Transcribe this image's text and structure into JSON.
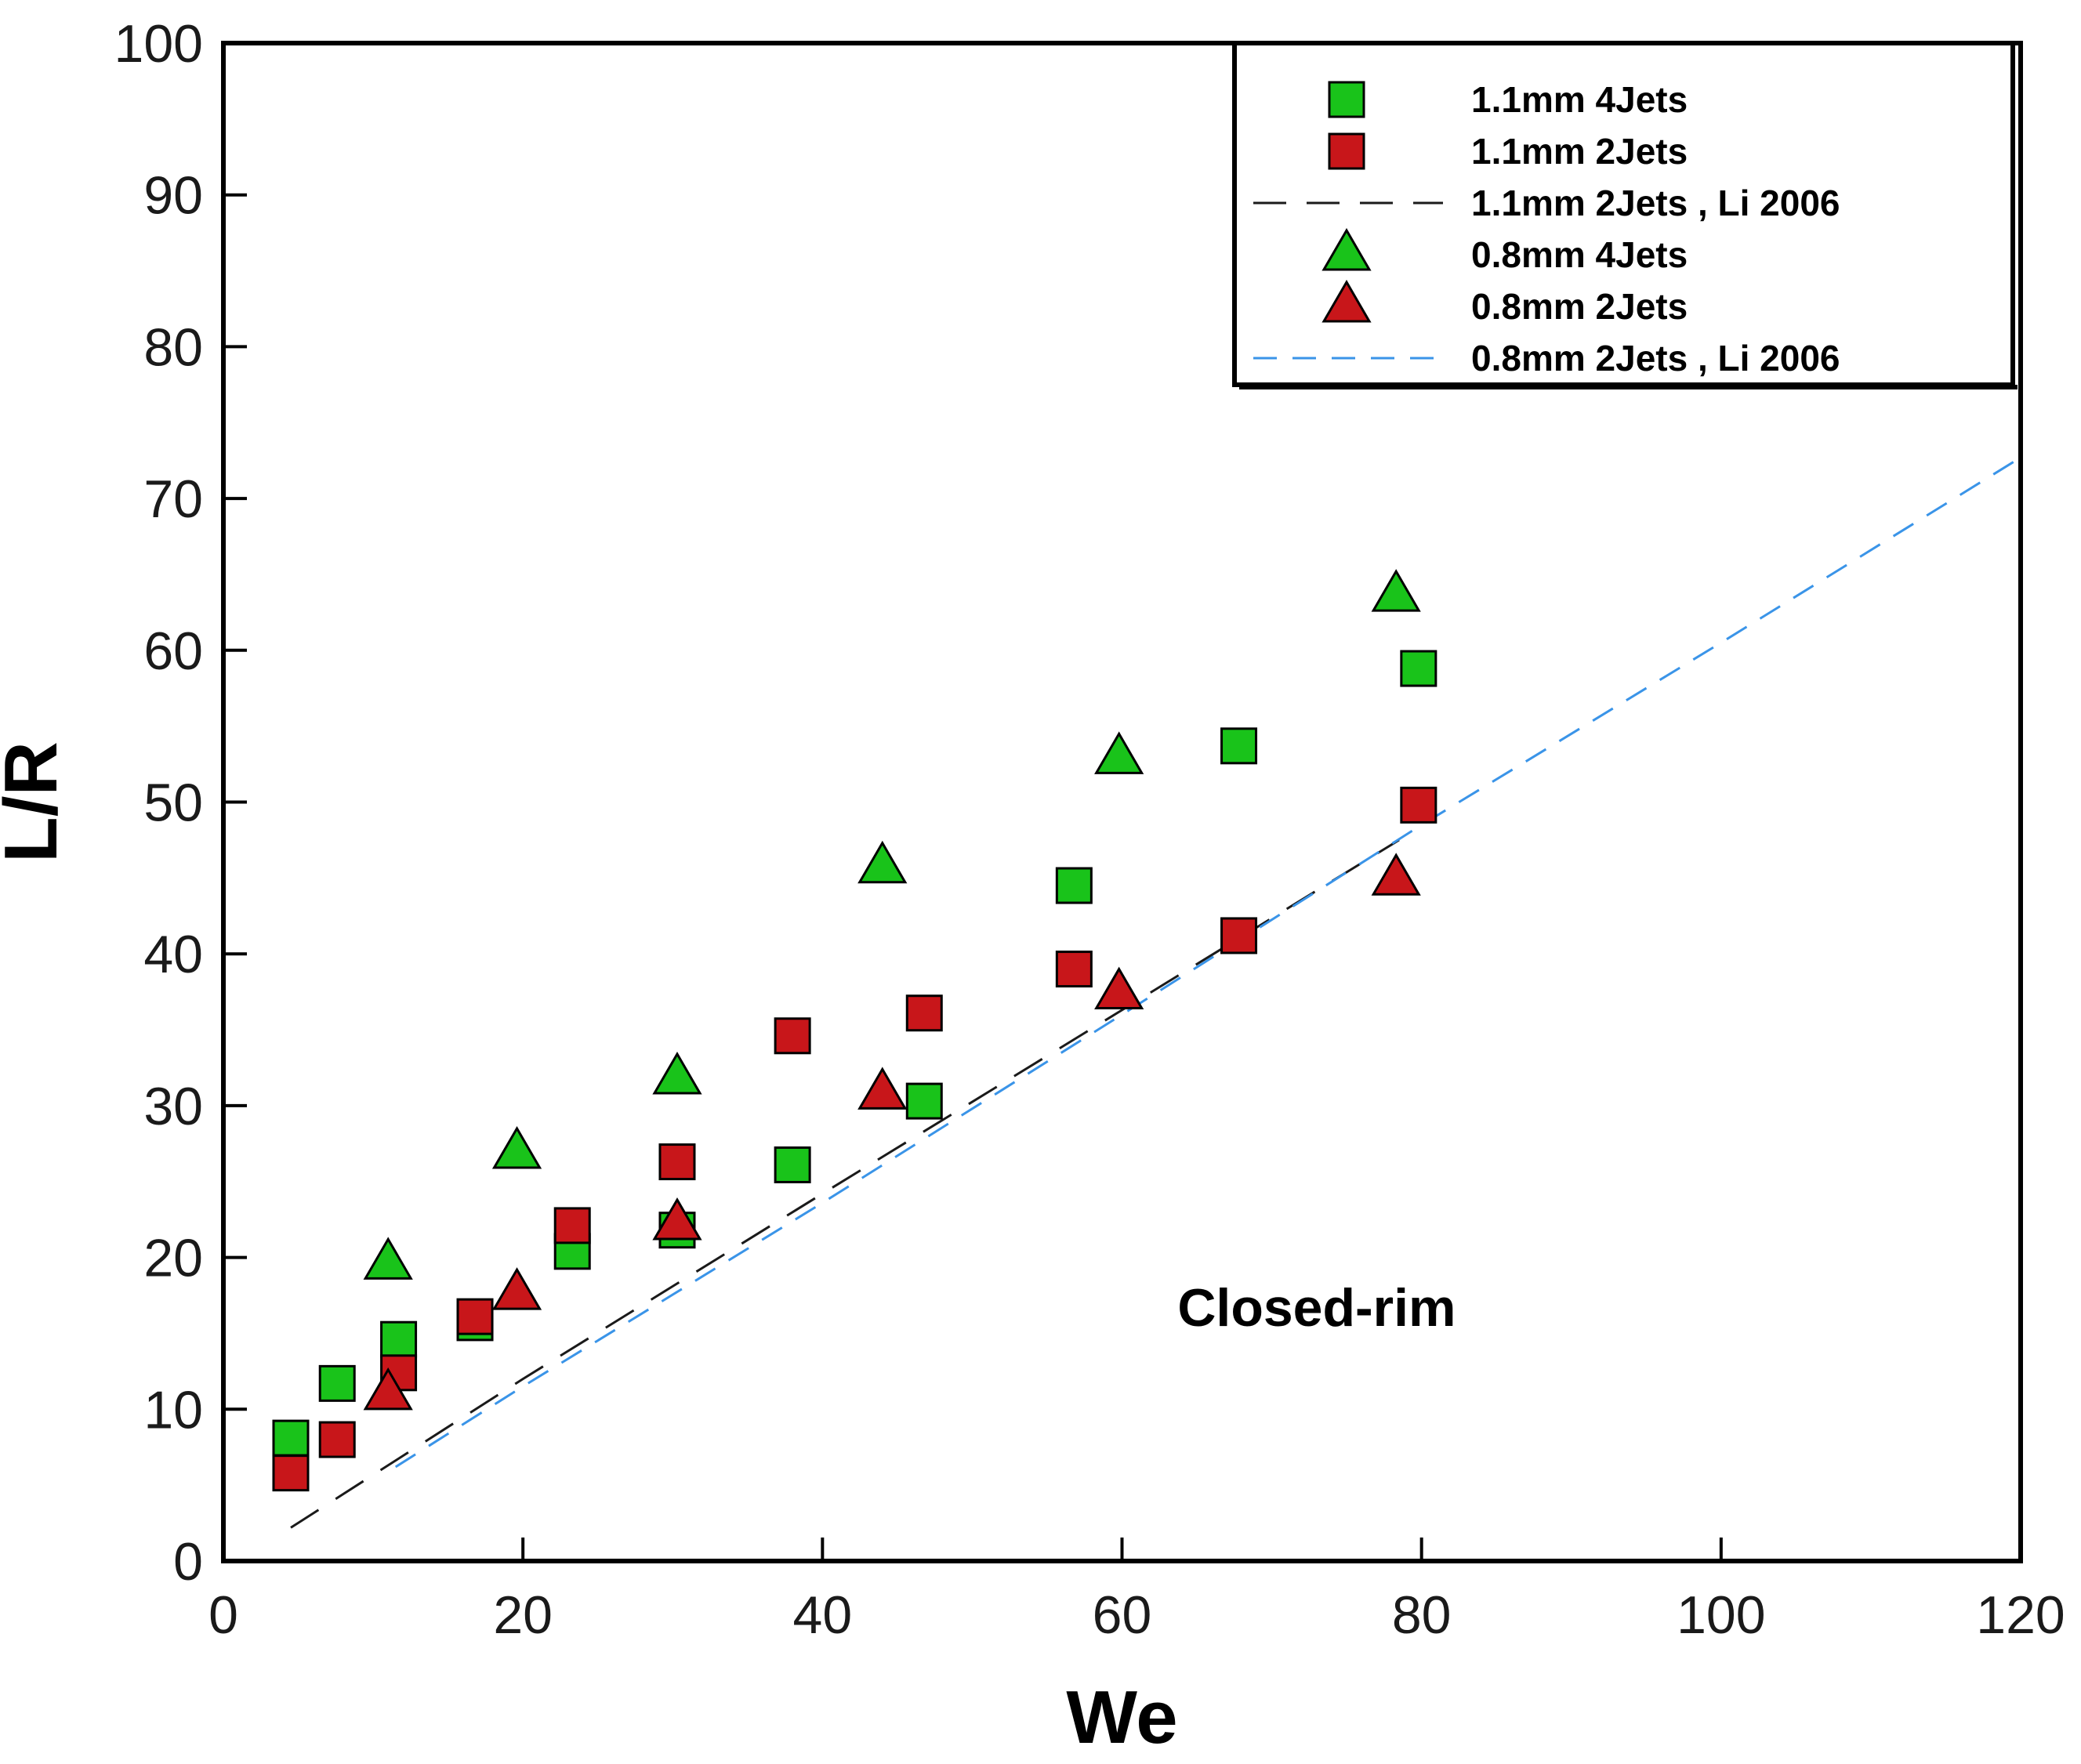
{
  "chart_data": {
    "type": "scatter",
    "title": "",
    "xlabel": "We",
    "ylabel": "L/R",
    "xlim": [
      0,
      120
    ],
    "ylim": [
      0,
      100
    ],
    "xticks": [
      "0",
      "20",
      "40",
      "60",
      "80",
      "100",
      "120"
    ],
    "yticks": [
      "0",
      "10",
      "20",
      "30",
      "40",
      "50",
      "60",
      "70",
      "80",
      "90",
      "100"
    ],
    "grid": false,
    "legend_position": "top-right",
    "annotation": "Closed-rim",
    "series": [
      {
        "name": "1.1mm 4Jets",
        "kind": "marker",
        "marker": "square",
        "color": "#19c31a",
        "points": [
          [
            4.5,
            8.1
          ],
          [
            7.6,
            11.7
          ],
          [
            11.7,
            14.6
          ],
          [
            16.8,
            15.7
          ],
          [
            23.3,
            20.4
          ],
          [
            30.3,
            21.8
          ],
          [
            38.0,
            26.1
          ],
          [
            46.8,
            30.3
          ],
          [
            56.8,
            44.5
          ],
          [
            67.8,
            53.7
          ],
          [
            79.8,
            58.8
          ]
        ]
      },
      {
        "name": "1.1mm 2Jets",
        "kind": "marker",
        "marker": "square",
        "color": "#c8161a",
        "points": [
          [
            4.5,
            5.8
          ],
          [
            7.6,
            8.0
          ],
          [
            11.7,
            12.4
          ],
          [
            16.8,
            16.1
          ],
          [
            23.3,
            22.1
          ],
          [
            30.3,
            26.3
          ],
          [
            38.0,
            34.6
          ],
          [
            46.8,
            36.1
          ],
          [
            56.8,
            39.0
          ],
          [
            67.8,
            41.2
          ],
          [
            79.8,
            49.8
          ]
        ]
      },
      {
        "name": "1.1mm 2Jets , Li 2006",
        "kind": "line",
        "dash": "long-dash",
        "color": "#1a1a1a",
        "points": [
          [
            4.5,
            2.2
          ],
          [
            20,
            12
          ],
          [
            40,
            24.2
          ],
          [
            60,
            36.3
          ],
          [
            78.5,
            47.5
          ]
        ]
      },
      {
        "name": "0.8mm 4Jets",
        "kind": "marker",
        "marker": "triangle",
        "color": "#19c31a",
        "points": [
          [
            11.0,
            19.6
          ],
          [
            19.6,
            26.9
          ],
          [
            30.3,
            31.8
          ],
          [
            44.0,
            45.7
          ],
          [
            59.8,
            52.9
          ],
          [
            78.3,
            63.6
          ]
        ]
      },
      {
        "name": "0.8mm 2Jets",
        "kind": "marker",
        "marker": "triangle",
        "color": "#c8161a",
        "points": [
          [
            11.0,
            11.0
          ],
          [
            19.6,
            17.6
          ],
          [
            30.3,
            22.2
          ],
          [
            44.0,
            30.8
          ],
          [
            59.8,
            37.4
          ],
          [
            78.3,
            44.9
          ]
        ]
      },
      {
        "name": "0.8mm 2Jets , Li 2006",
        "kind": "line",
        "dash": "dashed",
        "color": "#3a94e8",
        "points": [
          [
            11.5,
            6.2
          ],
          [
            20,
            11.5
          ],
          [
            40,
            23.6
          ],
          [
            60,
            36
          ],
          [
            80,
            48.5
          ],
          [
            100,
            60.5
          ],
          [
            120,
            72.7
          ]
        ]
      }
    ]
  }
}
